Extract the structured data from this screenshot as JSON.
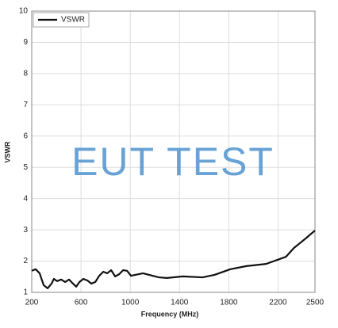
{
  "chart_data": {
    "type": "line",
    "x_label": "Frequency (MHz)",
    "y_label": "VSWR",
    "annotation": "EUT TEST",
    "x": [
      200,
      232,
      264,
      297,
      329,
      361,
      380,
      406,
      439,
      471,
      503,
      535,
      561,
      587,
      619,
      652,
      684,
      716,
      748,
      781,
      813,
      845,
      877,
      910,
      942,
      974,
      1006,
      1103,
      1232,
      1297,
      1426,
      1587,
      1684,
      1813,
      1942,
      2103,
      2265,
      2329,
      2426,
      2500
    ],
    "series": [
      {
        "name": "VSWR",
        "color": "#111111",
        "values": [
          1.69,
          1.74,
          1.61,
          1.23,
          1.13,
          1.28,
          1.43,
          1.36,
          1.41,
          1.33,
          1.41,
          1.28,
          1.18,
          1.33,
          1.43,
          1.38,
          1.28,
          1.33,
          1.53,
          1.66,
          1.61,
          1.71,
          1.51,
          1.58,
          1.71,
          1.69,
          1.53,
          1.61,
          1.48,
          1.46,
          1.51,
          1.48,
          1.56,
          1.74,
          1.84,
          1.91,
          2.14,
          2.42,
          2.73,
          2.98
        ]
      }
    ],
    "xlim": [
      200,
      2500
    ],
    "xticks": [
      200,
      600,
      1000,
      1400,
      1800,
      2200,
      2500
    ],
    "ylim": [
      1,
      10
    ],
    "yticks": [
      1,
      2,
      3,
      4,
      5,
      6,
      7,
      8,
      9,
      10
    ],
    "grid": true,
    "legend": "top-left"
  }
}
